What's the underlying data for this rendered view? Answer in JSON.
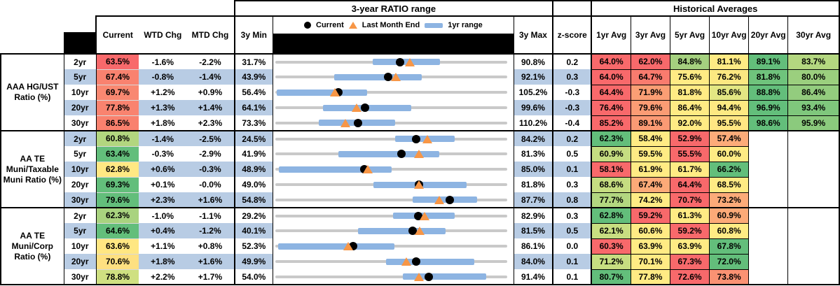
{
  "header": {
    "section_ratio_range": "3-year RATIO range",
    "section_historical": "Historical Averages",
    "col_current": "Current",
    "col_wtd": "WTD Chg",
    "col_mtd": "MTD Chg",
    "col_3y_min": "3y Min",
    "col_3y_max": "3y Max",
    "col_zscore": "z-score",
    "avg_cols": [
      "1yr Avg",
      "3yr Avg",
      "5yr Avg",
      "10yr Avg",
      "20yr Avg",
      "30yr Avg"
    ],
    "legend": {
      "current": "Current",
      "last_month": "Last Month End",
      "range": "1yr range"
    }
  },
  "colors": {
    "stripe": "#b8cce4",
    "bar": "#8db4e2",
    "track": "#c9c9c9",
    "triangle": "#f79646",
    "dot": "#000000",
    "heat_red": "#f8696b",
    "heat_yellow": "#ffeb84",
    "heat_green": "#63be7b"
  },
  "groups": [
    {
      "label": "AAA HG/UST Ratio (%)",
      "rows": [
        {
          "tenor": "2yr",
          "current": "63.5%",
          "cur_color": "#f8696b",
          "wtd": "-1.6%",
          "mtd": "-2.2%",
          "min": "31.7%",
          "max": "90.8%",
          "z": "0.2",
          "chart": {
            "min": 31.7,
            "max": 90.8,
            "cur": 63.5,
            "last": 66.0,
            "lo": 56.5,
            "hi": 73.7
          },
          "avgs": [
            {
              "v": "64.0%",
              "c": "#f8696b"
            },
            {
              "v": "62.0%",
              "c": "#f8696b"
            },
            {
              "v": "84.8%",
              "c": "#a5d07f"
            },
            {
              "v": "81.1%",
              "c": "#ffeb84"
            },
            {
              "v": "89.1%",
              "c": "#63be7b"
            },
            {
              "v": "83.7%",
              "c": "#b4d780"
            }
          ]
        },
        {
          "tenor": "5yr",
          "current": "67.4%",
          "cur_color": "#f9826f",
          "wtd": "-0.8%",
          "mtd": "-1.4%",
          "min": "43.9%",
          "max": "92.1%",
          "z": "0.3",
          "chart": {
            "min": 43.9,
            "max": 92.1,
            "cur": 67.4,
            "last": 69.0,
            "lo": 56.2,
            "hi": 74.4
          },
          "avgs": [
            {
              "v": "64.0%",
              "c": "#f8696b"
            },
            {
              "v": "64.7%",
              "c": "#f97b6e"
            },
            {
              "v": "75.6%",
              "c": "#ffeb84"
            },
            {
              "v": "76.2%",
              "c": "#fce881"
            },
            {
              "v": "81.8%",
              "c": "#6fc37c"
            },
            {
              "v": "80.0%",
              "c": "#9bcf7e"
            }
          ]
        },
        {
          "tenor": "10yr",
          "current": "69.7%",
          "cur_color": "#f98871",
          "wtd": "+1.2%",
          "mtd": "+0.9%",
          "min": "56.4%",
          "max": "105.2%",
          "z": "-0.3",
          "chart": {
            "min": 56.4,
            "max": 105.2,
            "cur": 69.7,
            "last": 68.9,
            "lo": 56.7,
            "hi": 75.7
          },
          "avgs": [
            {
              "v": "64.4%",
              "c": "#f8696b"
            },
            {
              "v": "71.9%",
              "c": "#fb9e74"
            },
            {
              "v": "81.8%",
              "c": "#ffeb84"
            },
            {
              "v": "85.6%",
              "c": "#e3e783"
            },
            {
              "v": "88.8%",
              "c": "#63be7b"
            },
            {
              "v": "86.4%",
              "c": "#93cc7e"
            }
          ]
        },
        {
          "tenor": "20yr",
          "current": "77.8%",
          "cur_color": "#f9836f",
          "wtd": "+1.3%",
          "mtd": "+1.4%",
          "min": "64.1%",
          "max": "99.6%",
          "z": "-0.3",
          "chart": {
            "min": 64.1,
            "max": 99.6,
            "cur": 77.8,
            "last": 76.5,
            "lo": 71.4,
            "hi": 84.9
          },
          "avgs": [
            {
              "v": "76.4%",
              "c": "#f8696b"
            },
            {
              "v": "79.6%",
              "c": "#fb9c74"
            },
            {
              "v": "86.4%",
              "c": "#ffeb84"
            },
            {
              "v": "94.4%",
              "c": "#fde982"
            },
            {
              "v": "96.9%",
              "c": "#63be7b"
            },
            {
              "v": "93.4%",
              "c": "#7fc77c"
            }
          ]
        },
        {
          "tenor": "30yr",
          "current": "86.5%",
          "cur_color": "#f9816e",
          "wtd": "+1.8%",
          "mtd": "+2.3%",
          "min": "73.3%",
          "max": "110.2%",
          "z": "-0.4",
          "chart": {
            "min": 73.3,
            "max": 110.2,
            "cur": 86.5,
            "last": 84.4,
            "lo": 80.2,
            "hi": 92.4
          },
          "avgs": [
            {
              "v": "85.2%",
              "c": "#f8696b"
            },
            {
              "v": "89.1%",
              "c": "#fb9a74"
            },
            {
              "v": "92.0%",
              "c": "#ffeb84"
            },
            {
              "v": "95.5%",
              "c": "#ffe783"
            },
            {
              "v": "98.6%",
              "c": "#63be7b"
            },
            {
              "v": "95.9%",
              "c": "#8bca7d"
            }
          ]
        }
      ]
    },
    {
      "label": "AA TE Muni/Taxable Muni Ratio (%)",
      "rows": [
        {
          "tenor": "2yr",
          "current": "60.8%",
          "cur_color": "#b2d67f",
          "wtd": "-1.4%",
          "mtd": "-2.5%",
          "min": "24.5%",
          "max": "84.2%",
          "z": "0.2",
          "chart": {
            "min": 24.5,
            "max": 84.2,
            "cur": 60.8,
            "last": 63.7,
            "lo": 55.4,
            "hi": 70.7
          },
          "avgs": [
            {
              "v": "62.3%",
              "c": "#63be7b"
            },
            {
              "v": "58.4%",
              "c": "#ffeb84"
            },
            {
              "v": "52.9%",
              "c": "#f8696b"
            },
            {
              "v": "57.4%",
              "c": "#fcab79"
            },
            {
              "v": "",
              "c": ""
            },
            {
              "v": "",
              "c": ""
            }
          ]
        },
        {
          "tenor": "5yr",
          "current": "63.4%",
          "cur_color": "#63be7b",
          "wtd": "-0.3%",
          "mtd": "-2.9%",
          "min": "41.9%",
          "max": "81.3%",
          "z": "0.5",
          "chart": {
            "min": 41.9,
            "max": 81.3,
            "cur": 63.4,
            "last": 66.3,
            "lo": 52.6,
            "hi": 69.8
          },
          "avgs": [
            {
              "v": "60.9%",
              "c": "#c5dd81"
            },
            {
              "v": "59.5%",
              "c": "#ffeb84"
            },
            {
              "v": "55.5%",
              "c": "#f8696b"
            },
            {
              "v": "60.0%",
              "c": "#ffeb84"
            },
            {
              "v": "",
              "c": ""
            },
            {
              "v": "",
              "c": ""
            }
          ]
        },
        {
          "tenor": "10yr",
          "current": "62.8%",
          "cur_color": "#ffe883",
          "wtd": "+0.6%",
          "mtd": "-0.3%",
          "min": "48.9%",
          "max": "85.0%",
          "z": "0.1",
          "chart": {
            "min": 48.9,
            "max": 85.0,
            "cur": 62.8,
            "last": 63.3,
            "lo": 49.4,
            "hi": 67.0
          },
          "avgs": [
            {
              "v": "58.1%",
              "c": "#f8696b"
            },
            {
              "v": "61.9%",
              "c": "#ffeb84"
            },
            {
              "v": "61.7%",
              "c": "#ffeb84"
            },
            {
              "v": "66.2%",
              "c": "#63be7b"
            },
            {
              "v": "",
              "c": ""
            },
            {
              "v": "",
              "c": ""
            }
          ]
        },
        {
          "tenor": "20yr",
          "current": "69.3%",
          "cur_color": "#63be7b",
          "wtd": "+0.1%",
          "mtd": "-0.0%",
          "min": "49.0%",
          "max": "81.8%",
          "z": "0.3",
          "chart": {
            "min": 49.0,
            "max": 81.8,
            "cur": 69.3,
            "last": 69.3,
            "lo": 62.9,
            "hi": 76.1
          },
          "avgs": [
            {
              "v": "68.6%",
              "c": "#c6dd81"
            },
            {
              "v": "67.4%",
              "c": "#fcaa78"
            },
            {
              "v": "64.4%",
              "c": "#f8696b"
            },
            {
              "v": "68.5%",
              "c": "#ffeb84"
            },
            {
              "v": "",
              "c": ""
            },
            {
              "v": "",
              "c": ""
            }
          ]
        },
        {
          "tenor": "30yr",
          "current": "79.6%",
          "cur_color": "#63be7b",
          "wtd": "+2.3%",
          "mtd": "+1.6%",
          "min": "54.8%",
          "max": "87.7%",
          "z": "0.8",
          "chart": {
            "min": 54.8,
            "max": 87.7,
            "cur": 79.6,
            "last": 78.1,
            "lo": 74.3,
            "hi": 83.5
          },
          "avgs": [
            {
              "v": "77.7%",
              "c": "#b3d780"
            },
            {
              "v": "74.2%",
              "c": "#ffeb84"
            },
            {
              "v": "70.7%",
              "c": "#f8696b"
            },
            {
              "v": "73.2%",
              "c": "#fcab79"
            },
            {
              "v": "",
              "c": ""
            },
            {
              "v": "",
              "c": ""
            }
          ]
        }
      ]
    },
    {
      "label": "AA TE Muni/Corp Ratio (%)",
      "rows": [
        {
          "tenor": "2yr",
          "current": "62.3%",
          "cur_color": "#a9d37f",
          "wtd": "-1.0%",
          "mtd": "-1.1%",
          "min": "29.2%",
          "max": "82.9%",
          "z": "0.3",
          "chart": {
            "min": 29.2,
            "max": 82.9,
            "cur": 62.3,
            "last": 63.8,
            "lo": 56.5,
            "hi": 70.8
          },
          "avgs": [
            {
              "v": "62.8%",
              "c": "#63be7b"
            },
            {
              "v": "59.2%",
              "c": "#f8696b"
            },
            {
              "v": "61.3%",
              "c": "#ffeb84"
            },
            {
              "v": "60.9%",
              "c": "#fcaa78"
            },
            {
              "v": "",
              "c": ""
            },
            {
              "v": "",
              "c": ""
            }
          ]
        },
        {
          "tenor": "5yr",
          "current": "64.6%",
          "cur_color": "#63be7b",
          "wtd": "+0.4%",
          "mtd": "-1.2%",
          "min": "40.1%",
          "max": "81.5%",
          "z": "0.5",
          "chart": {
            "min": 40.1,
            "max": 81.5,
            "cur": 64.6,
            "last": 65.9,
            "lo": 54.9,
            "hi": 70.5
          },
          "avgs": [
            {
              "v": "62.1%",
              "c": "#c8de81"
            },
            {
              "v": "60.6%",
              "c": "#ffeb84"
            },
            {
              "v": "59.2%",
              "c": "#f8696b"
            },
            {
              "v": "60.8%",
              "c": "#ffeb84"
            },
            {
              "v": "",
              "c": ""
            },
            {
              "v": "",
              "c": ""
            }
          ]
        },
        {
          "tenor": "10yr",
          "current": "63.6%",
          "cur_color": "#ffe782",
          "wtd": "+1.1%",
          "mtd": "+0.8%",
          "min": "52.3%",
          "max": "86.1%",
          "z": "0.0",
          "chart": {
            "min": 52.3,
            "max": 86.1,
            "cur": 63.6,
            "last": 62.9,
            "lo": 52.7,
            "hi": 69.7
          },
          "avgs": [
            {
              "v": "60.3%",
              "c": "#f8696b"
            },
            {
              "v": "63.9%",
              "c": "#ffeb84"
            },
            {
              "v": "63.9%",
              "c": "#ffeb84"
            },
            {
              "v": "67.8%",
              "c": "#63be7b"
            },
            {
              "v": "",
              "c": ""
            },
            {
              "v": "",
              "c": ""
            }
          ]
        },
        {
          "tenor": "20yr",
          "current": "70.6%",
          "cur_color": "#fee081",
          "wtd": "+1.8%",
          "mtd": "+1.6%",
          "min": "49.9%",
          "max": "84.0%",
          "z": "0.1",
          "chart": {
            "min": 49.9,
            "max": 84.0,
            "cur": 70.6,
            "last": 69.2,
            "lo": 66.2,
            "hi": 79.2
          },
          "avgs": [
            {
              "v": "71.2%",
              "c": "#c7de81"
            },
            {
              "v": "70.1%",
              "c": "#ffeb84"
            },
            {
              "v": "67.3%",
              "c": "#f8696b"
            },
            {
              "v": "72.0%",
              "c": "#63be7b"
            },
            {
              "v": "",
              "c": ""
            },
            {
              "v": "",
              "c": ""
            }
          ]
        },
        {
          "tenor": "30yr",
          "current": "78.8%",
          "cur_color": "#cfe081",
          "wtd": "+2.2%",
          "mtd": "+1.7%",
          "min": "54.0%",
          "max": "91.4%",
          "z": "0.1",
          "chart": {
            "min": 54.0,
            "max": 91.4,
            "cur": 78.8,
            "last": 77.2,
            "lo": 74.6,
            "hi": 88.0
          },
          "avgs": [
            {
              "v": "80.7%",
              "c": "#63be7b"
            },
            {
              "v": "77.8%",
              "c": "#ffeb84"
            },
            {
              "v": "72.6%",
              "c": "#f8696b"
            },
            {
              "v": "73.8%",
              "c": "#fa9273"
            },
            {
              "v": "",
              "c": ""
            },
            {
              "v": "",
              "c": ""
            }
          ]
        }
      ]
    }
  ]
}
